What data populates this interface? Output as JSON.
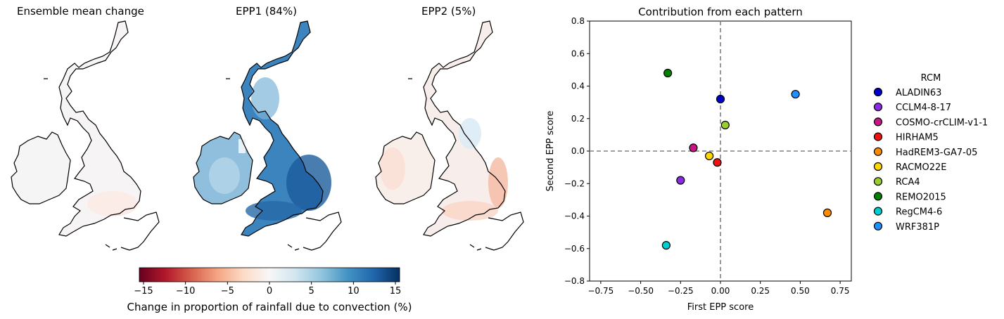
{
  "maps": [
    {
      "title": "Ensemble mean change",
      "pattern": "mean"
    },
    {
      "title": "EPP1 (84%)",
      "pattern": "epp1"
    },
    {
      "title": "EPP2 (5%)",
      "pattern": "epp2"
    }
  ],
  "colorbar": {
    "label": "Change in proportion of rainfall due to convection (%)",
    "colormap": "RdBu",
    "range": [
      -15.5,
      15.5
    ],
    "ticks": [
      -15,
      -10,
      -5,
      0,
      5,
      10,
      15
    ],
    "tick_labels": [
      "−15",
      "−10",
      "−5",
      "0",
      "5",
      "10",
      "15"
    ]
  },
  "chart_data": {
    "type": "scatter",
    "title": "Contribution from each pattern",
    "xlabel": "First EPP score",
    "ylabel": "Second EPP score",
    "xlim": [
      -0.82,
      0.82
    ],
    "ylim": [
      -0.8,
      0.8
    ],
    "xticks": [
      -0.75,
      -0.5,
      -0.25,
      0.0,
      0.25,
      0.5,
      0.75
    ],
    "xtick_labels": [
      "−0.75",
      "−0.50",
      "−0.25",
      "0.00",
      "0.25",
      "0.50",
      "0.75"
    ],
    "yticks": [
      -0.8,
      -0.6,
      -0.4,
      -0.2,
      0.0,
      0.2,
      0.4,
      0.6,
      0.8
    ],
    "ytick_labels": [
      "−0.8",
      "−0.6",
      "−0.4",
      "−0.2",
      "0.0",
      "0.2",
      "0.4",
      "0.6",
      "0.8"
    ],
    "grid": false,
    "reference_lines": {
      "x": 0,
      "y": 0,
      "style": "dashed",
      "color": "#808080"
    },
    "legend_title": "RCM",
    "legend_position": "outside-right",
    "series": [
      {
        "name": "ALADIN63",
        "color": "#0000cd",
        "x": 0.0,
        "y": 0.32
      },
      {
        "name": "CCLM4-8-17",
        "color": "#8a2be2",
        "x": -0.25,
        "y": -0.18
      },
      {
        "name": "COSMO-crCLIM-v1-1",
        "color": "#c71585",
        "x": -0.17,
        "y": 0.02
      },
      {
        "name": "HIRHAM5",
        "color": "#ee1111",
        "x": -0.02,
        "y": -0.07
      },
      {
        "name": "HadREM3-GA7-05",
        "color": "#ff8c00",
        "x": 0.67,
        "y": -0.38
      },
      {
        "name": "RACMO22E",
        "color": "#ffd700",
        "x": -0.07,
        "y": -0.03
      },
      {
        "name": "RCA4",
        "color": "#9acd32",
        "x": 0.03,
        "y": 0.16
      },
      {
        "name": "REMO2015",
        "color": "#008000",
        "x": -0.33,
        "y": 0.48
      },
      {
        "name": "RegCM4-6",
        "color": "#00ced1",
        "x": -0.34,
        "y": -0.58
      },
      {
        "name": "WRF381P",
        "color": "#1e90ff",
        "x": 0.47,
        "y": 0.35
      }
    ]
  }
}
